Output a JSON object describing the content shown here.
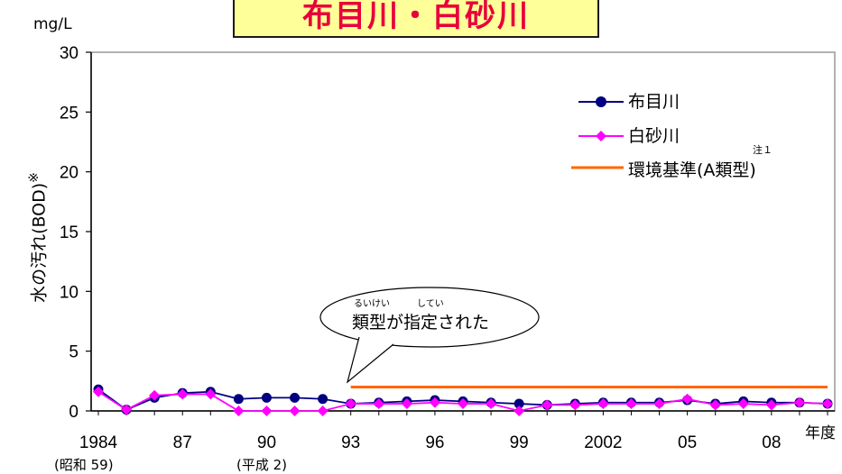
{
  "title": "布目川・白砂川",
  "unit_label": "mg/L",
  "ylabel": "水の汚れ(BOD)",
  "ylabel_mark": "※",
  "xunit": "年度",
  "colors": {
    "series1": "#000080",
    "series2": "#ff00ff",
    "standard": "#ff6600",
    "title_bg": "#ffff99",
    "title_text": "#e8003a",
    "grid_border": "#999999"
  },
  "legend": {
    "items": [
      "布目川",
      "白砂川",
      "環境基準(A類型)"
    ],
    "note": "注１"
  },
  "callout": {
    "text": "類型が指定された",
    "ruby1": "るいけい",
    "ruby2": "してい"
  },
  "era_labels": [
    "(昭和 59)",
    "(平成 2)"
  ],
  "chart_data": {
    "type": "line",
    "x": [
      1984,
      1985,
      1986,
      1987,
      1988,
      1989,
      1990,
      1991,
      1992,
      1993,
      1994,
      1995,
      1996,
      1997,
      1998,
      1999,
      2000,
      2001,
      2002,
      2003,
      2004,
      2005,
      2006,
      2007,
      2008,
      2009,
      2010
    ],
    "tick_years": [
      1984,
      1987,
      1990,
      1993,
      1996,
      1999,
      2002,
      2005,
      2008
    ],
    "tick_labels": [
      "1984",
      "87",
      "90",
      "93",
      "96",
      "99",
      "2002",
      "05",
      "08"
    ],
    "y_ticks": [
      0,
      5,
      10,
      15,
      20,
      25,
      30
    ],
    "ylim": [
      0,
      30
    ],
    "series": [
      {
        "name": "布目川",
        "values": [
          1.8,
          0.1,
          1.1,
          1.5,
          1.6,
          1.0,
          1.1,
          1.1,
          1.0,
          0.6,
          0.7,
          0.8,
          0.9,
          0.8,
          0.7,
          0.6,
          0.5,
          0.6,
          0.7,
          0.7,
          0.7,
          0.9,
          0.6,
          0.8,
          0.7,
          0.7,
          0.6
        ]
      },
      {
        "name": "白砂川",
        "values": [
          1.6,
          0.1,
          1.3,
          1.4,
          1.4,
          0.0,
          0.0,
          0.0,
          0.0,
          0.6,
          0.6,
          0.6,
          0.7,
          0.6,
          0.6,
          0.0,
          0.5,
          0.5,
          0.6,
          0.6,
          0.6,
          1.0,
          0.5,
          0.6,
          0.5,
          0.7,
          0.6
        ]
      },
      {
        "name": "環境基準(A類型)",
        "x": [
          1993,
          2010
        ],
        "values": [
          2,
          2
        ]
      }
    ],
    "grid": false,
    "legend_position": "top-right"
  }
}
